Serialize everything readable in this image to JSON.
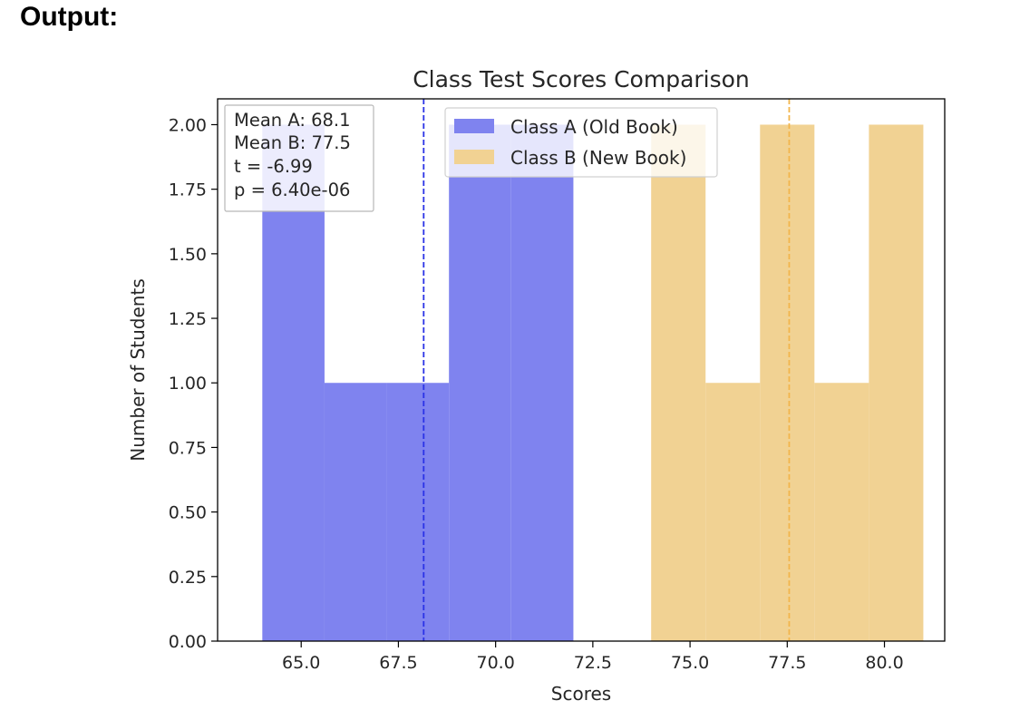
{
  "header": {
    "label": "Output:"
  },
  "colors": {
    "class_a": "#7f83ef",
    "class_b": "#f1d293",
    "mean_a_line": "#2b33e6",
    "mean_b_line": "#f2b54c"
  },
  "chart_data": {
    "type": "bar",
    "title": "Class Test Scores Comparison",
    "xlabel": "Scores",
    "ylabel": "Number of Students",
    "xlim": [
      62.85,
      81.55
    ],
    "ylim": [
      0,
      2.1
    ],
    "xticks": [
      "65.0",
      "67.5",
      "70.0",
      "72.5",
      "75.0",
      "77.5",
      "80.0"
    ],
    "xtick_values": [
      65.0,
      67.5,
      70.0,
      72.5,
      75.0,
      77.5,
      80.0
    ],
    "yticks": [
      "0.00",
      "0.25",
      "0.50",
      "0.75",
      "1.00",
      "1.25",
      "1.50",
      "1.75",
      "2.00"
    ],
    "ytick_values": [
      0,
      0.25,
      0.5,
      0.75,
      1.0,
      1.25,
      1.5,
      1.75,
      2.0
    ],
    "series": [
      {
        "name": "Class A (Old Book)",
        "bins": [
          {
            "start": 64.0,
            "end": 65.6,
            "count": 2
          },
          {
            "start": 65.6,
            "end": 67.2,
            "count": 1
          },
          {
            "start": 67.2,
            "end": 68.8,
            "count": 1
          },
          {
            "start": 68.8,
            "end": 70.4,
            "count": 2
          },
          {
            "start": 70.4,
            "end": 72.0,
            "count": 2
          }
        ]
      },
      {
        "name": "Class B (New Book)",
        "bins": [
          {
            "start": 74.0,
            "end": 75.4,
            "count": 2
          },
          {
            "start": 75.4,
            "end": 76.8,
            "count": 1
          },
          {
            "start": 76.8,
            "end": 78.2,
            "count": 2
          },
          {
            "start": 78.2,
            "end": 79.6,
            "count": 1
          },
          {
            "start": 79.6,
            "end": 81.0,
            "count": 2
          }
        ]
      }
    ],
    "mean_lines": [
      {
        "series": "Class A (Old Book)",
        "x": 68.15
      },
      {
        "series": "Class B (New Book)",
        "x": 77.55
      }
    ],
    "stats_box": {
      "lines": [
        "Mean A: 68.1",
        "Mean B: 77.5",
        "t = -6.99",
        "p = 6.40e-06"
      ],
      "placement": "top-left"
    },
    "legend": {
      "placement": "top-center",
      "entries": [
        "Class A (Old Book)",
        "Class B (New Book)"
      ]
    }
  }
}
